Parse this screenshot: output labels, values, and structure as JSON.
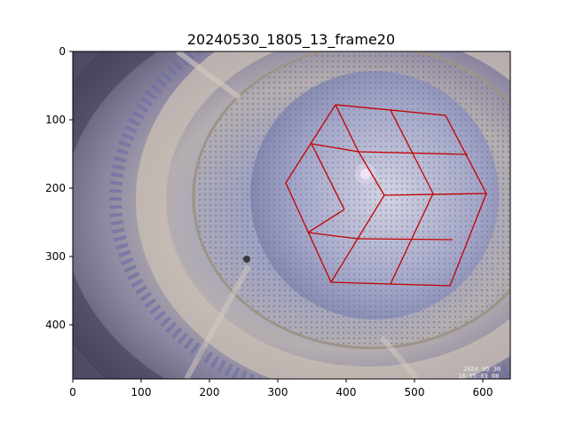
{
  "figure": {
    "title": "20240530_1805_13_frame20",
    "image": {
      "width_units": 640,
      "height_units": 480,
      "timestamp_line1": "2024 05 30",
      "timestamp_line2": "18:05:03 08"
    },
    "x_ticks": [
      "0",
      "100",
      "200",
      "300",
      "400",
      "500",
      "600"
    ],
    "y_ticks": [
      "0",
      "100",
      "200",
      "300",
      "400"
    ],
    "overlay_color": "#c40000",
    "colors": {
      "rim_light": "#cfc4b6",
      "rim_dark": "#6f6a72",
      "ring_blue": "#5c6090",
      "inner_wall": "#9aa0c0",
      "floor_light": "#c2c3d6",
      "floor_mid": "#8f93b8"
    }
  }
}
